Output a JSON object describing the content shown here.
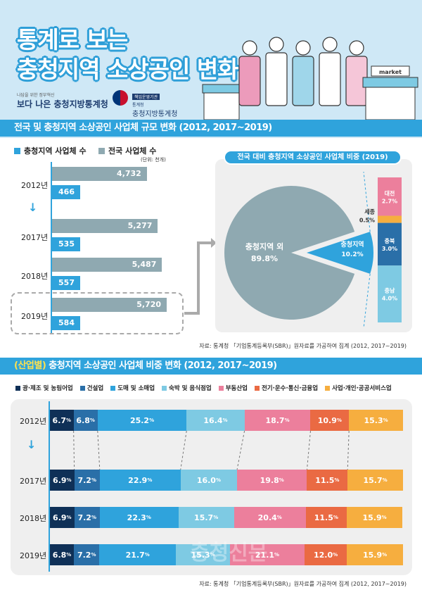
{
  "header": {
    "title_line1": "통계로 보는",
    "title_line2": "충청지역 소상공인 변화",
    "logo1_small": "나답을 위한 정부혁신",
    "logo1_main": "보다 나은 충청지방통계청",
    "logo2_badge": "책임운영기관",
    "logo2_small": "통계청",
    "logo2_main": "충청지방통계청",
    "market_sign": "market"
  },
  "section1": {
    "title": "전국 및 충청지역 소상공인 사업체 규모 변화 (2012, 2017~2019)",
    "unit": "(단위: 천개)",
    "source": "자료: 통계청 「기업통계등록부(SBR)」원자료를 가공하여 집계 (2012, 2017~2019)"
  },
  "section2": {
    "title_highlight": "(산업별)",
    "title": " 충청지역 소상공인 사업체 비중 변화 (2012, 2017~2019)",
    "source": "자료: 통계청 「기업통계등록부(SBR)」원자료를 가공하여 집계 (2012, 2017~2019)"
  },
  "watermark": "충청신문",
  "chart_data": [
    {
      "type": "bar",
      "orientation": "horizontal",
      "categories": [
        "2012년",
        "2017년",
        "2018년",
        "2019년"
      ],
      "series": [
        {
          "name": "전국 사업체 수",
          "color": "#8fa9b1",
          "values": [
            4732,
            5277,
            5487,
            5720
          ],
          "labels": [
            "4,732",
            "5,277",
            "5,487",
            "5,720"
          ]
        },
        {
          "name": "충청지역 사업체 수",
          "color": "#2fa3dc",
          "values": [
            466,
            535,
            557,
            584
          ],
          "labels": [
            "466",
            "535",
            "557",
            "584"
          ]
        }
      ],
      "unit": "(단위: 천개)"
    },
    {
      "type": "pie",
      "title": "전국 대비 충청지역 소상공인 사업체 비중 (2019)",
      "slices": [
        {
          "label": "충청지역 외",
          "value": 89.8,
          "display": "89.8%",
          "color": "#8fa9b1"
        },
        {
          "label": "충청지역",
          "value": 10.2,
          "display": "10.2%",
          "color": "#2fa3dc"
        }
      ],
      "breakdown": [
        {
          "label": "대전",
          "value": 2.7,
          "display": "2.7%",
          "color": "#ec7f9c"
        },
        {
          "label": "세종",
          "value": 0.5,
          "display": "0.5%",
          "color": "#f6ae3f"
        },
        {
          "label": "충북",
          "value": 3.0,
          "display": "3.0%",
          "color": "#2a6fa8"
        },
        {
          "label": "충남",
          "value": 4.0,
          "display": "4.0%",
          "color": "#7ecae3"
        }
      ]
    },
    {
      "type": "bar",
      "stacked": true,
      "orientation": "horizontal",
      "unit": "%",
      "categories": [
        "2012년",
        "2017년",
        "2018년",
        "2019년"
      ],
      "series": [
        {
          "name": "광·제조 및 농림어업",
          "color": "#0f3057",
          "values": [
            6.7,
            6.9,
            6.9,
            6.8
          ]
        },
        {
          "name": "건설업",
          "color": "#2a6fa8",
          "values": [
            6.8,
            7.2,
            7.2,
            7.2
          ]
        },
        {
          "name": "도매 및 소매업",
          "color": "#2fa3dc",
          "values": [
            25.2,
            22.9,
            22.3,
            21.7
          ]
        },
        {
          "name": "숙박 및 음식점업",
          "color": "#7ecae3",
          "values": [
            16.4,
            16.0,
            15.7,
            15.3
          ]
        },
        {
          "name": "부동산업",
          "color": "#ec7f9c",
          "values": [
            18.7,
            19.8,
            20.4,
            21.1
          ]
        },
        {
          "name": "전기·운수·통신·금융업",
          "color": "#ea6a43",
          "values": [
            10.9,
            11.5,
            11.5,
            12.0
          ]
        },
        {
          "name": "사업·개인·공공서비스업",
          "color": "#f6ae3f",
          "values": [
            15.3,
            15.7,
            15.9,
            15.9
          ]
        }
      ]
    }
  ]
}
